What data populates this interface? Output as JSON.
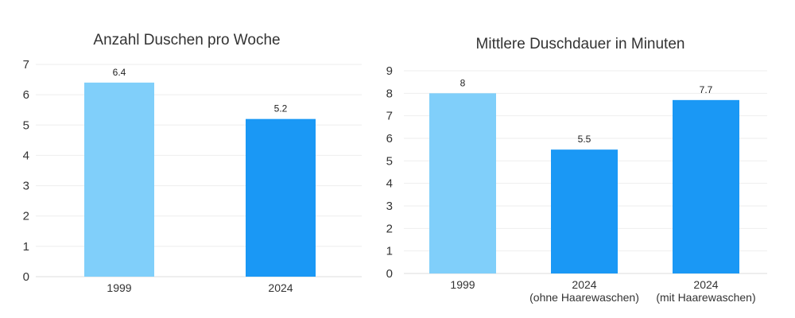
{
  "chart_data": [
    {
      "type": "bar",
      "title": "Anzahl Duschen pro Woche",
      "categories": [
        [
          "1999"
        ],
        [
          "2024"
        ]
      ],
      "values": [
        6.4,
        5.2
      ],
      "value_labels": [
        "6.4",
        "5.2"
      ],
      "colors": [
        "#80cffa",
        "#1a98f5"
      ],
      "ylim": [
        0,
        7
      ],
      "yticks": [
        "0",
        "1",
        "2",
        "3",
        "4",
        "5",
        "6",
        "7"
      ],
      "xlabel": "",
      "ylabel": "",
      "grid": true,
      "legend": "none"
    },
    {
      "type": "bar",
      "title": "Mittlere Duschdauer in Minuten",
      "categories": [
        [
          "1999"
        ],
        [
          "2024",
          "(ohne Haarewaschen)"
        ],
        [
          "2024",
          "(mit Haarewaschen)"
        ]
      ],
      "values": [
        8,
        5.5,
        7.7
      ],
      "value_labels": [
        "8",
        "5.5",
        "7.7"
      ],
      "colors": [
        "#80cffa",
        "#1a98f5",
        "#1a98f5"
      ],
      "ylim": [
        0,
        9
      ],
      "yticks": [
        "0",
        "1",
        "2",
        "3",
        "4",
        "5",
        "6",
        "7",
        "8",
        "9"
      ],
      "xlabel": "",
      "ylabel": "",
      "grid": true,
      "legend": "none"
    }
  ]
}
